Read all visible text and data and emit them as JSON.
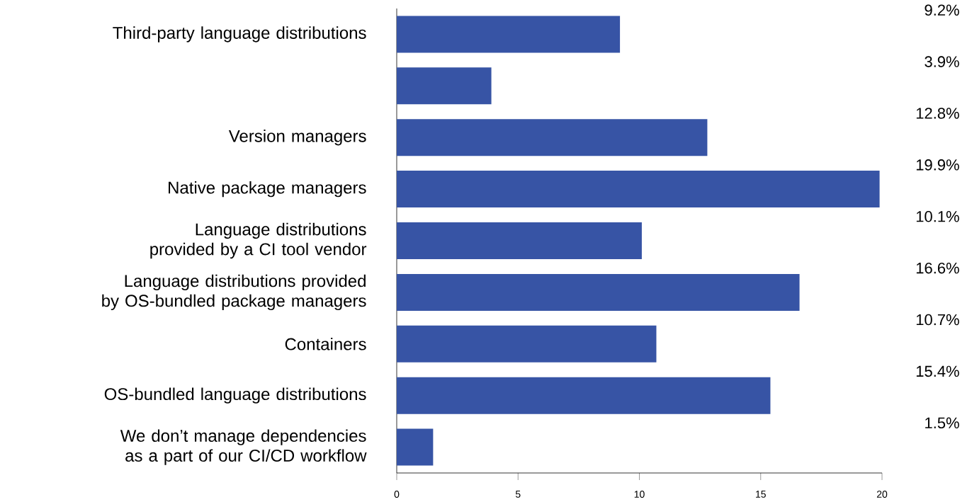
{
  "chart_data": {
    "type": "bar",
    "orientation": "horizontal",
    "categories": [
      "Third-party language distributions",
      null,
      "Version managers",
      "Native package managers",
      "Language distributions provided by a CI tool vendor",
      "Language distributions provided by OS-bundled package managers",
      "Containers",
      "OS-bundled language distributions",
      "We don’t manage dependencies as a part of our CI/CD workflow"
    ],
    "values": [
      9.2,
      3.9,
      12.8,
      19.9,
      10.1,
      16.6,
      10.7,
      15.4,
      1.5
    ],
    "value_labels": [
      "9.2%",
      "3.9%",
      "12.8%",
      "19.9%",
      "10.1%",
      "16.6%",
      "10.7%",
      "15.4%",
      "1.5%"
    ],
    "color": "#3754a5",
    "xlim": [
      0,
      20
    ],
    "xticks": [
      0,
      5,
      10,
      15,
      20
    ]
  }
}
